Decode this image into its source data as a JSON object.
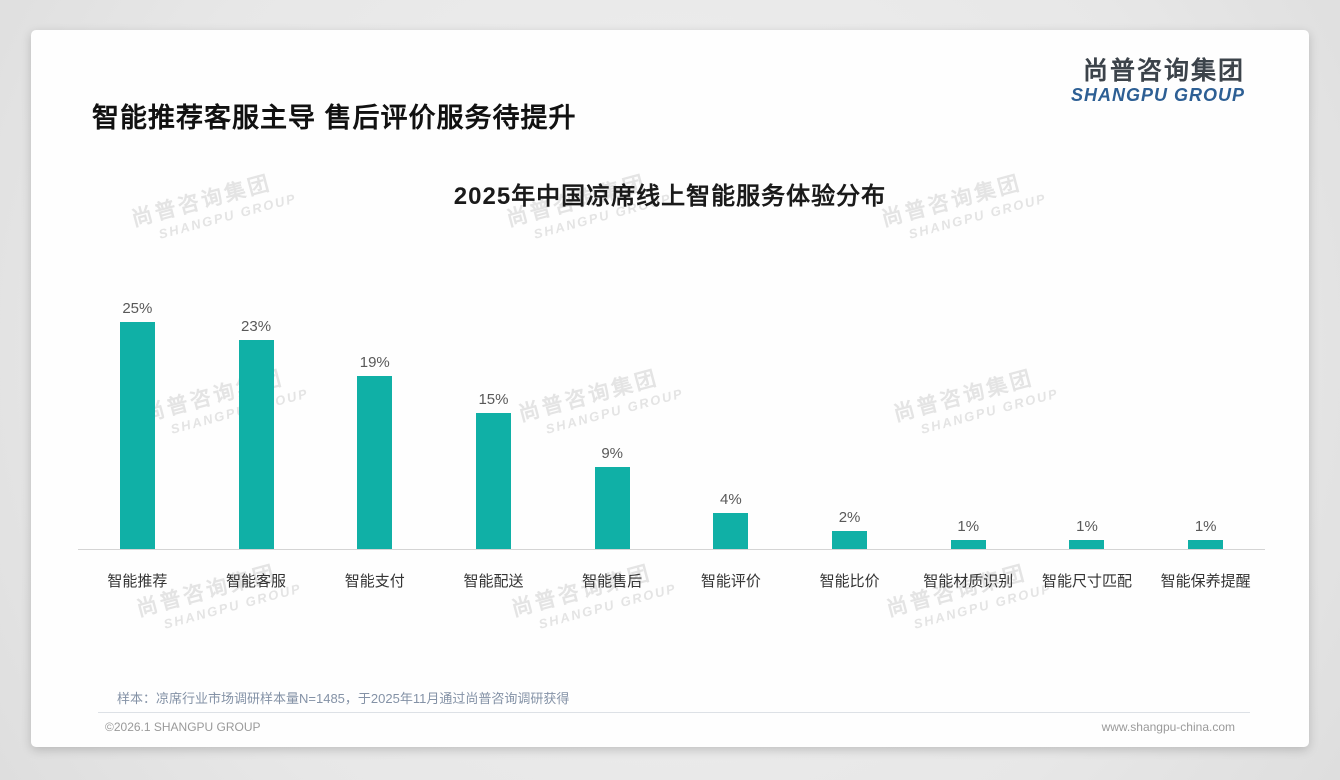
{
  "header": {
    "title": "智能推荐客服主导 售后评价服务待提升"
  },
  "logo": {
    "cn": "尚普咨询集团",
    "en": "SHANGPU GROUP"
  },
  "watermark": {
    "line1": "尚普咨询集团",
    "line2": "SHANGPU GROUP"
  },
  "chart_data": {
    "type": "bar",
    "title": "2025年中国凉席线上智能服务体验分布",
    "categories": [
      "智能推荐",
      "智能客服",
      "智能支付",
      "智能配送",
      "智能售后",
      "智能评价",
      "智能比价",
      "智能材质识别",
      "智能尺寸匹配",
      "智能保养提醒"
    ],
    "values": [
      25,
      23,
      19,
      15,
      9,
      4,
      2,
      1,
      1,
      1
    ],
    "value_labels": [
      "25%",
      "23%",
      "19%",
      "15%",
      "9%",
      "4%",
      "2%",
      "1%",
      "1%",
      "1%"
    ],
    "unit": "%",
    "bar_color": "#10b0a6",
    "ylim": [
      0,
      27
    ],
    "xlabel": "",
    "ylabel": "",
    "grid": false,
    "legend": "none"
  },
  "footer": {
    "note": "样本：凉席行业市场调研样本量N=1485，于2025年11月通过尚普咨询调研获得",
    "copyright": "©2026.1 SHANGPU GROUP",
    "website": "www.shangpu-china.com"
  }
}
